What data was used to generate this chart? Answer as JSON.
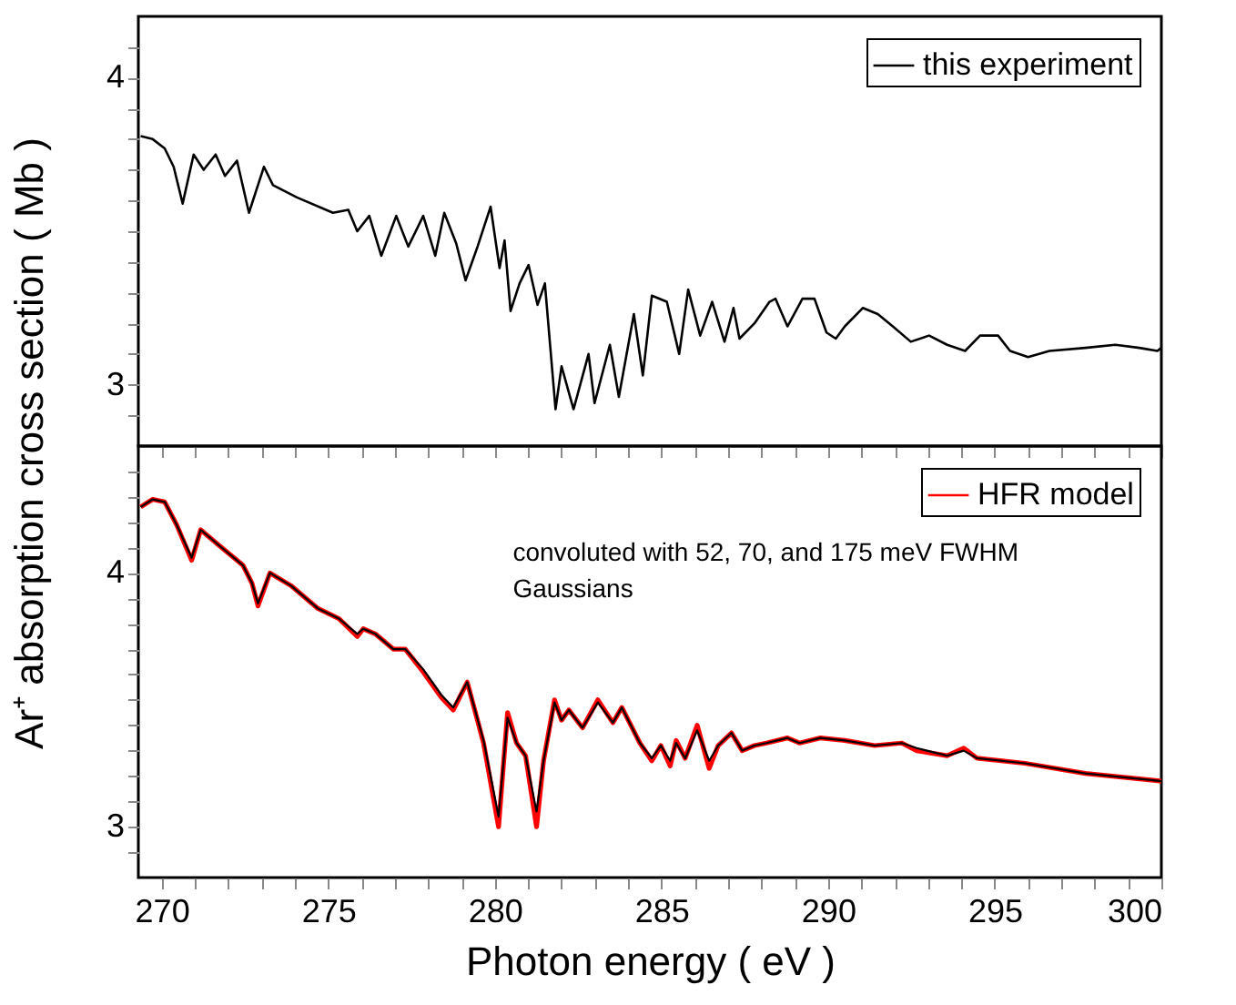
{
  "chart_data": [
    {
      "type": "line",
      "xlim": [
        269.3,
        300
      ],
      "ylim": [
        2.8,
        4.2
      ],
      "xticks": [
        270,
        {
          "value": 271,
          "label": null
        },
        {
          "value": 272,
          "label": null
        },
        {
          "value": 273,
          "label": null
        },
        {
          "value": 274,
          "label": null
        },
        275,
        {
          "value": 276,
          "label": null
        },
        {
          "value": 277,
          "label": null
        },
        {
          "value": 278,
          "label": null
        },
        {
          "value": 279,
          "label": null
        },
        280,
        {
          "value": 281,
          "label": null
        },
        {
          "value": 282,
          "label": null
        },
        {
          "value": 283,
          "label": null
        },
        {
          "value": 284,
          "label": null
        },
        285,
        {
          "value": 286,
          "label": null
        },
        {
          "value": 287,
          "label": null
        },
        {
          "value": 288,
          "label": null
        },
        {
          "value": 289,
          "label": null
        },
        290,
        {
          "value": 291,
          "label": null
        },
        {
          "value": 292,
          "label": null
        },
        {
          "value": 293,
          "label": null
        },
        {
          "value": 294,
          "label": null
        },
        295,
        {
          "value": 296,
          "label": null
        },
        {
          "value": 297,
          "label": null
        },
        {
          "value": 298,
          "label": null
        },
        {
          "value": 299,
          "label": null
        },
        300
      ],
      "yticks": [
        {
          "value": 2.9,
          "label": null
        },
        3,
        {
          "value": 3.1,
          "label": null
        },
        {
          "value": 3.2,
          "label": null
        },
        {
          "value": 3.3,
          "label": null
        },
        {
          "value": 3.4,
          "label": null
        },
        {
          "value": 3.5,
          "label": null
        },
        {
          "value": 3.6,
          "label": null
        },
        {
          "value": 3.7,
          "label": null
        },
        {
          "value": 3.8,
          "label": null
        },
        {
          "value": 3.9,
          "label": null
        },
        4,
        {
          "value": 4.1,
          "label": null
        }
      ],
      "tick_labels": "y",
      "legend": "top right",
      "grid": false,
      "series": [
        {
          "name": "this experiment",
          "color": "#000000",
          "x": [
            269.37,
            269.73,
            270.09,
            270.36,
            270.63,
            270.96,
            271.26,
            271.62,
            271.9,
            272.26,
            272.62,
            273.07,
            273.34,
            274.06,
            275.14,
            275.6,
            275.87,
            276.23,
            276.59,
            277.04,
            277.4,
            277.85,
            278.21,
            278.48,
            278.84,
            279.12,
            279.48,
            279.87,
            280.14,
            280.29,
            280.47,
            280.74,
            281.01,
            281.28,
            281.5,
            281.82,
            282.0,
            282.36,
            282.81,
            282.99,
            283.45,
            283.72,
            284.17,
            284.44,
            284.71,
            285.16,
            285.53,
            285.8,
            286.16,
            286.52,
            286.89,
            287.16,
            287.34,
            287.79,
            288.24,
            288.42,
            288.78,
            289.23,
            289.59,
            289.95,
            290.23,
            290.5,
            291.04,
            291.49,
            291.94,
            292.48,
            293.03,
            293.57,
            294.11,
            294.56,
            295.1,
            295.46,
            296.0,
            296.64,
            297.72,
            298.62,
            299.34,
            299.88,
            300.0
          ],
          "values": [
            3.81,
            3.8,
            3.77,
            3.71,
            3.59,
            3.75,
            3.7,
            3.75,
            3.68,
            3.73,
            3.56,
            3.71,
            3.65,
            3.61,
            3.56,
            3.57,
            3.5,
            3.55,
            3.42,
            3.55,
            3.45,
            3.55,
            3.42,
            3.56,
            3.46,
            3.34,
            3.45,
            3.58,
            3.38,
            3.47,
            3.24,
            3.33,
            3.39,
            3.26,
            3.33,
            2.92,
            3.06,
            2.92,
            3.1,
            2.94,
            3.13,
            2.96,
            3.23,
            3.03,
            3.29,
            3.27,
            3.1,
            3.31,
            3.16,
            3.27,
            3.14,
            3.25,
            3.15,
            3.2,
            3.27,
            3.28,
            3.19,
            3.28,
            3.28,
            3.17,
            3.15,
            3.19,
            3.25,
            3.23,
            3.19,
            3.14,
            3.16,
            3.13,
            3.11,
            3.16,
            3.16,
            3.11,
            3.09,
            3.11,
            3.12,
            3.13,
            3.12,
            3.11,
            3.12
          ]
        }
      ]
    },
    {
      "type": "line",
      "xlim": [
        269.3,
        300
      ],
      "ylim": [
        2.8,
        4.5
      ],
      "xticks": [
        270,
        {
          "value": 271,
          "label": null
        },
        {
          "value": 272,
          "label": null
        },
        {
          "value": 273,
          "label": null
        },
        {
          "value": 274,
          "label": null
        },
        275,
        {
          "value": 276,
          "label": null
        },
        {
          "value": 277,
          "label": null
        },
        {
          "value": 278,
          "label": null
        },
        {
          "value": 279,
          "label": null
        },
        280,
        {
          "value": 281,
          "label": null
        },
        {
          "value": 282,
          "label": null
        },
        {
          "value": 283,
          "label": null
        },
        {
          "value": 284,
          "label": null
        },
        285,
        {
          "value": 286,
          "label": null
        },
        {
          "value": 287,
          "label": null
        },
        {
          "value": 288,
          "label": null
        },
        {
          "value": 289,
          "label": null
        },
        290,
        {
          "value": 291,
          "label": null
        },
        {
          "value": 292,
          "label": null
        },
        {
          "value": 293,
          "label": null
        },
        {
          "value": 294,
          "label": null
        },
        295,
        {
          "value": 296,
          "label": null
        },
        {
          "value": 297,
          "label": null
        },
        {
          "value": 298,
          "label": null
        },
        {
          "value": 299,
          "label": null
        },
        300
      ],
      "yticks": [
        {
          "value": 2.9,
          "label": null
        },
        3,
        {
          "value": 3.1,
          "label": null
        },
        {
          "value": 3.2,
          "label": null
        },
        {
          "value": 3.3,
          "label": null
        },
        {
          "value": 3.4,
          "label": null
        },
        {
          "value": 3.5,
          "label": null
        },
        {
          "value": 3.6,
          "label": null
        },
        {
          "value": 3.7,
          "label": null
        },
        {
          "value": 3.8,
          "label": null
        },
        {
          "value": 3.9,
          "label": null
        },
        4,
        {
          "value": 4.1,
          "label": null
        },
        {
          "value": 4.2,
          "label": null
        },
        {
          "value": 4.3,
          "label": null
        },
        {
          "value": 4.4,
          "label": null
        }
      ],
      "legend": "top right",
      "grid": false,
      "xlabel": "Photon energy  ( eV )",
      "ylabel": "Ar⁺ absorption cross section  ( Mb )",
      "annotations": [
        "convoluted with 52, 70, and 175 meV FWHM\nGaussians"
      ],
      "series": [
        {
          "name": "HFR model",
          "color": "#ff0000",
          "x": [
            269.37,
            269.73,
            270.09,
            270.45,
            270.9,
            271.17,
            271.71,
            272.44,
            272.71,
            272.89,
            273.25,
            273.88,
            274.69,
            275.32,
            275.87,
            276.05,
            276.41,
            276.95,
            277.31,
            277.85,
            278.39,
            278.75,
            279.17,
            279.66,
            280.11,
            280.38,
            280.65,
            280.92,
            281.25,
            281.46,
            281.79,
            282.0,
            282.22,
            282.63,
            283.09,
            283.54,
            283.81,
            284.35,
            284.71,
            284.98,
            285.26,
            285.44,
            285.71,
            286.07,
            286.43,
            286.7,
            287.1,
            287.42,
            287.79,
            288.15,
            288.78,
            289.14,
            289.77,
            290.5,
            291.4,
            292.21,
            292.66,
            293.57,
            294.07,
            294.47,
            295.91,
            297.72,
            300.0
          ],
          "values": [
            4.26,
            4.29,
            4.28,
            4.19,
            4.05,
            4.17,
            4.11,
            4.03,
            3.96,
            3.87,
            4.0,
            3.95,
            3.86,
            3.82,
            3.75,
            3.78,
            3.76,
            3.7,
            3.7,
            3.61,
            3.51,
            3.46,
            3.57,
            3.33,
            3.0,
            3.45,
            3.33,
            3.28,
            3.0,
            3.26,
            3.5,
            3.42,
            3.46,
            3.39,
            3.5,
            3.41,
            3.47,
            3.33,
            3.26,
            3.32,
            3.24,
            3.34,
            3.27,
            3.4,
            3.23,
            3.32,
            3.37,
            3.3,
            3.32,
            3.33,
            3.35,
            3.33,
            3.35,
            3.34,
            3.32,
            3.33,
            3.3,
            3.28,
            3.31,
            3.27,
            3.25,
            3.21,
            3.18
          ]
        },
        {
          "color": "#000000",
          "x": [
            269.37,
            269.73,
            270.09,
            270.45,
            270.9,
            271.17,
            271.71,
            272.44,
            272.71,
            272.89,
            273.25,
            273.88,
            274.69,
            275.32,
            275.87,
            276.05,
            276.41,
            276.95,
            277.31,
            277.85,
            278.39,
            278.75,
            279.17,
            279.66,
            280.11,
            280.38,
            280.65,
            280.92,
            281.25,
            281.46,
            281.79,
            282.0,
            282.22,
            282.63,
            283.09,
            283.54,
            283.81,
            284.35,
            284.71,
            284.98,
            285.26,
            285.44,
            285.71,
            286.07,
            286.43,
            286.7,
            287.1,
            287.42,
            287.79,
            288.15,
            288.78,
            289.14,
            289.77,
            290.5,
            291.4,
            292.21,
            292.66,
            293.57,
            294.07,
            294.47,
            295.91,
            297.72,
            300.0
          ],
          "values": [
            4.26,
            4.29,
            4.28,
            4.19,
            4.06,
            4.17,
            4.11,
            4.03,
            3.96,
            3.88,
            4.0,
            3.95,
            3.86,
            3.82,
            3.76,
            3.78,
            3.76,
            3.7,
            3.7,
            3.62,
            3.52,
            3.47,
            3.57,
            3.34,
            3.04,
            3.43,
            3.33,
            3.28,
            3.06,
            3.26,
            3.49,
            3.42,
            3.46,
            3.39,
            3.49,
            3.41,
            3.47,
            3.33,
            3.27,
            3.32,
            3.26,
            3.33,
            3.27,
            3.38,
            3.26,
            3.32,
            3.37,
            3.3,
            3.32,
            3.33,
            3.35,
            3.33,
            3.35,
            3.34,
            3.32,
            3.33,
            3.31,
            3.28,
            3.3,
            3.27,
            3.25,
            3.21,
            3.18
          ]
        }
      ]
    }
  ]
}
